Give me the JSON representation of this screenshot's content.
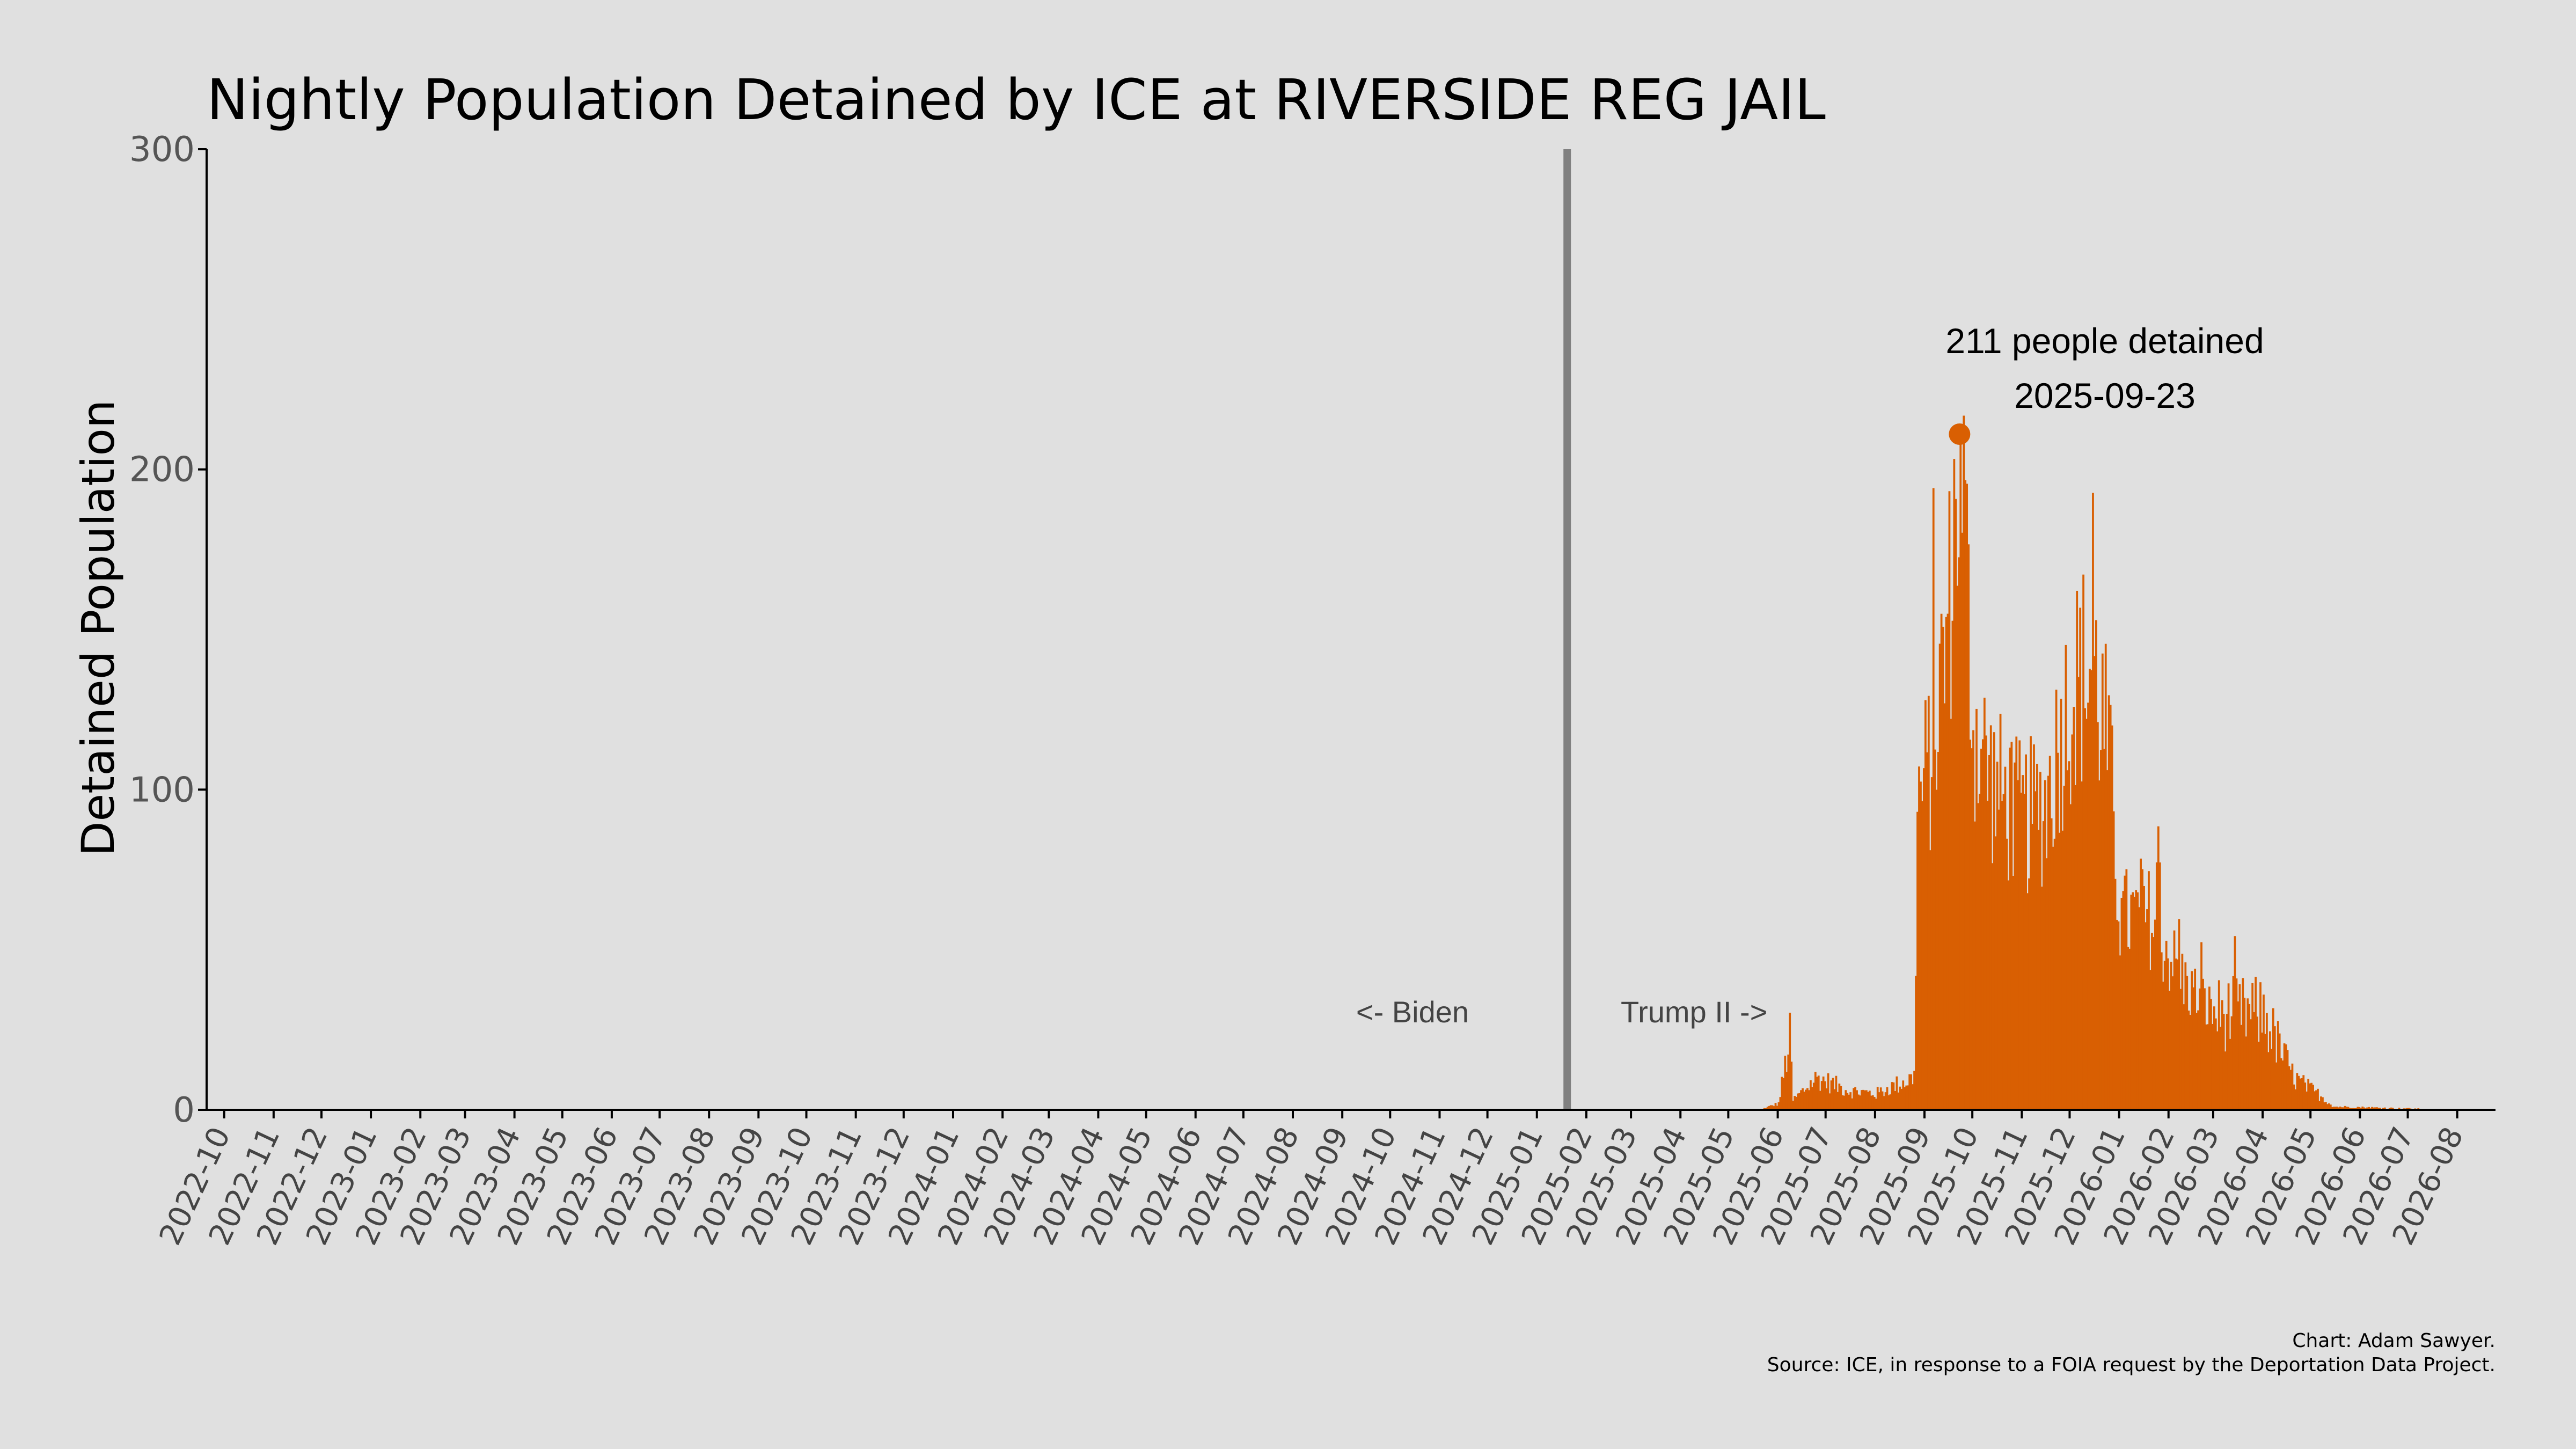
{
  "chart_data": {
    "type": "bar",
    "title": "Nightly Population Detained by ICE at RIVERSIDE REG JAIL",
    "xlabel": "",
    "ylabel": "Detained Population",
    "ylim": [
      0,
      300
    ],
    "yticks": [
      0,
      100,
      200,
      300
    ],
    "xlim": [
      "2022-09-20",
      "2026-08-25"
    ],
    "x_tick_labels": [
      "2022-10",
      "2022-11",
      "2022-12",
      "2023-01",
      "2023-02",
      "2023-03",
      "2023-04",
      "2023-05",
      "2023-06",
      "2023-07",
      "2023-08",
      "2023-09",
      "2023-10",
      "2023-11",
      "2023-12",
      "2024-01",
      "2024-02",
      "2024-03",
      "2024-04",
      "2024-05",
      "2024-06",
      "2024-07",
      "2024-08",
      "2024-09",
      "2024-10",
      "2024-11",
      "2024-12",
      "2025-01",
      "2025-02",
      "2025-03",
      "2025-04",
      "2025-05",
      "2025-06",
      "2025-07",
      "2025-08",
      "2025-09",
      "2025-10",
      "2025-11",
      "2025-12",
      "2026-01",
      "2026-02",
      "2026-03",
      "2026-04",
      "2026-05",
      "2026-06",
      "2026-07",
      "2026-08"
    ],
    "grid": false,
    "bar_color": "#d95f02",
    "reference_line": {
      "date": "2025-01-20",
      "color": "#808080"
    },
    "era_labels": {
      "left": "<- Biden",
      "right": "Trump II ->"
    },
    "peak": {
      "date": "2025-09-23",
      "value": 211,
      "label": "211 people detained",
      "date_label": "2025-09-23"
    },
    "series": [
      {
        "key_points": [
          [
            "2025-05-20",
            0
          ],
          [
            "2025-06-01",
            2
          ],
          [
            "2025-06-08",
            22
          ],
          [
            "2025-06-10",
            3
          ],
          [
            "2025-06-25",
            10
          ],
          [
            "2025-07-15",
            6
          ],
          [
            "2025-08-01",
            5
          ],
          [
            "2025-08-15",
            8
          ],
          [
            "2025-08-25",
            10
          ],
          [
            "2025-08-27",
            95
          ],
          [
            "2025-09-05",
            110
          ],
          [
            "2025-09-15",
            150
          ],
          [
            "2025-09-23",
            211
          ],
          [
            "2025-10-01",
            120
          ],
          [
            "2025-10-15",
            100
          ],
          [
            "2025-11-01",
            90
          ],
          [
            "2025-11-15",
            95
          ],
          [
            "2025-12-01",
            130
          ],
          [
            "2025-12-15",
            140
          ],
          [
            "2025-12-25",
            110
          ],
          [
            "2026-01-01",
            60
          ],
          [
            "2026-01-20",
            60
          ],
          [
            "2026-02-10",
            40
          ],
          [
            "2026-03-01",
            30
          ],
          [
            "2026-04-01",
            30
          ],
          [
            "2026-04-20",
            10
          ],
          [
            "2026-05-05",
            5
          ],
          [
            "2026-05-15",
            1
          ],
          [
            "2026-08-05",
            0
          ]
        ]
      }
    ]
  },
  "caption": {
    "line1": "Chart: Adam Sawyer.",
    "line2": "Source: ICE, in response to a FOIA request by the Deportation Data Project."
  }
}
